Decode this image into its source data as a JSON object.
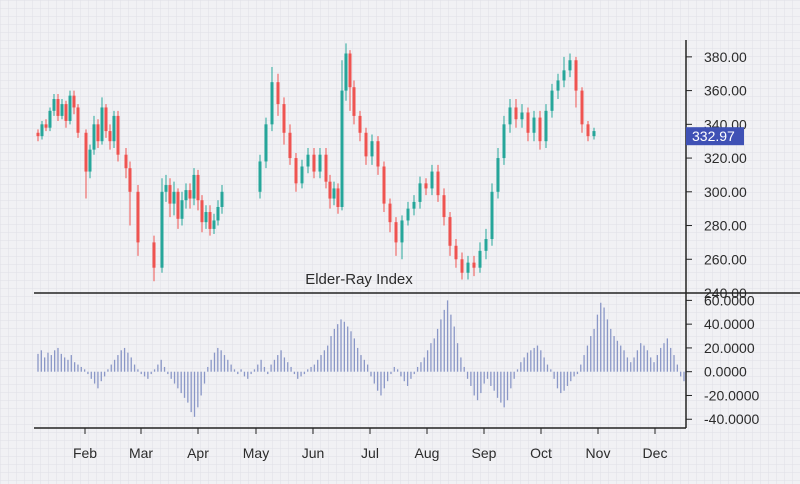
{
  "chart_data": [
    {
      "type": "candlestick",
      "title": "",
      "y_axis": {
        "ticks": [
          380,
          360,
          340,
          320,
          300,
          280,
          260,
          240
        ],
        "tick_labels": [
          "380.00",
          "360.00",
          "340.00",
          "320.00",
          "300.00",
          "280.00",
          "260.00",
          "240.00"
        ],
        "ylim": [
          240,
          390
        ],
        "position": "right"
      },
      "last_price": {
        "label": "332.97",
        "value": 332.97
      },
      "x_axis": {
        "ticks": [
          "Feb",
          "Mar",
          "Apr",
          "May",
          "Jun",
          "Jul",
          "Aug",
          "Sep",
          "Oct",
          "Nov",
          "Dec"
        ]
      },
      "colors": {
        "up": "#26a69a",
        "down": "#ef5350",
        "price_tag": "#3f51b5"
      },
      "candles": [
        [
          335,
          333,
          330,
          337
        ],
        [
          333,
          340,
          331,
          342
        ],
        [
          340,
          338,
          336,
          343
        ],
        [
          338,
          348,
          336,
          350
        ],
        [
          348,
          355,
          345,
          358
        ],
        [
          355,
          345,
          342,
          358
        ],
        [
          345,
          352,
          343,
          355
        ],
        [
          352,
          342,
          338,
          354
        ],
        [
          342,
          357,
          340,
          360
        ],
        [
          357,
          350,
          346,
          360
        ],
        [
          350,
          335,
          332,
          352
        ],
        [
          335,
          312,
          296,
          337
        ],
        [
          312,
          325,
          308,
          328
        ],
        [
          325,
          340,
          322,
          345
        ],
        [
          340,
          330,
          326,
          343
        ],
        [
          330,
          350,
          328,
          356
        ],
        [
          350,
          336,
          332,
          352
        ],
        [
          336,
          330,
          325,
          340
        ],
        [
          330,
          345,
          326,
          348
        ],
        [
          345,
          322,
          318,
          348
        ],
        [
          322,
          314,
          308,
          326
        ],
        [
          314,
          300,
          280,
          318
        ],
        [
          300,
          270,
          262,
          304
        ],
        [
          270,
          255,
          247,
          274
        ],
        [
          255,
          300,
          252,
          308
        ],
        [
          300,
          304,
          294,
          310
        ],
        [
          304,
          293,
          285,
          308
        ],
        [
          293,
          300,
          286,
          306
        ],
        [
          300,
          284,
          278,
          302
        ],
        [
          284,
          295,
          280,
          300
        ],
        [
          295,
          301,
          290,
          305
        ],
        [
          301,
          296,
          290,
          305
        ],
        [
          296,
          310,
          292,
          314
        ],
        [
          310,
          295,
          289,
          313
        ],
        [
          295,
          282,
          276,
          298
        ],
        [
          282,
          288,
          278,
          292
        ],
        [
          288,
          278,
          274,
          292
        ],
        [
          278,
          283,
          275,
          287
        ],
        [
          283,
          291,
          280,
          295
        ],
        [
          291,
          300,
          287,
          304
        ],
        [
          300,
          318,
          296,
          322
        ],
        [
          318,
          340,
          314,
          344
        ],
        [
          340,
          365,
          336,
          374
        ],
        [
          365,
          352,
          345,
          370
        ],
        [
          352,
          335,
          328,
          356
        ],
        [
          335,
          320,
          316,
          340
        ],
        [
          320,
          305,
          300,
          323
        ],
        [
          305,
          315,
          302,
          319
        ],
        [
          315,
          322,
          311,
          326
        ],
        [
          322,
          312,
          308,
          326
        ],
        [
          312,
          322,
          308,
          326
        ],
        [
          322,
          306,
          302,
          326
        ],
        [
          306,
          296,
          290,
          310
        ],
        [
          296,
          302,
          292,
          306
        ],
        [
          302,
          291,
          287,
          305
        ],
        [
          291,
          360,
          289,
          378
        ],
        [
          360,
          382,
          354,
          388
        ],
        [
          382,
          362,
          348,
          384
        ],
        [
          362,
          345,
          340,
          366
        ],
        [
          345,
          335,
          330,
          348
        ],
        [
          335,
          321,
          316,
          338
        ],
        [
          321,
          330,
          316,
          334
        ],
        [
          330,
          315,
          310,
          333
        ],
        [
          315,
          293,
          288,
          318
        ],
        [
          293,
          282,
          276,
          296
        ],
        [
          282,
          270,
          262,
          285
        ],
        [
          270,
          283,
          260,
          286
        ],
        [
          283,
          290,
          280,
          294
        ],
        [
          290,
          294,
          286,
          298
        ],
        [
          294,
          305,
          290,
          309
        ],
        [
          305,
          302,
          298,
          308
        ],
        [
          302,
          312,
          298,
          316
        ],
        [
          312,
          298,
          294,
          316
        ],
        [
          298,
          285,
          280,
          302
        ],
        [
          285,
          268,
          262,
          288
        ],
        [
          268,
          260,
          255,
          272
        ],
        [
          260,
          252,
          248,
          264
        ],
        [
          252,
          258,
          248,
          262
        ],
        [
          258,
          255,
          250,
          262
        ],
        [
          255,
          265,
          252,
          270
        ],
        [
          265,
          272,
          260,
          278
        ],
        [
          272,
          300,
          268,
          305
        ],
        [
          300,
          320,
          296,
          326
        ],
        [
          320,
          340,
          316,
          345
        ],
        [
          340,
          350,
          335,
          355
        ],
        [
          350,
          343,
          338,
          355
        ],
        [
          343,
          347,
          338,
          352
        ],
        [
          347,
          335,
          330,
          350
        ],
        [
          335,
          344,
          330,
          348
        ],
        [
          344,
          330,
          325,
          348
        ],
        [
          330,
          348,
          326,
          352
        ],
        [
          348,
          360,
          344,
          364
        ],
        [
          360,
          366,
          355,
          370
        ],
        [
          366,
          372,
          362,
          380
        ],
        [
          372,
          378,
          368,
          382
        ],
        [
          378,
          360,
          350,
          380
        ],
        [
          360,
          340,
          335,
          362
        ],
        [
          340,
          333,
          330,
          342
        ],
        [
          333,
          336,
          331,
          338
        ]
      ],
      "candle_positions": [
        38,
        42,
        46,
        50,
        54,
        58,
        62,
        66,
        70,
        74,
        78,
        86,
        90,
        94,
        98,
        102,
        106,
        110,
        114,
        118,
        126,
        130,
        138,
        154,
        162,
        166,
        170,
        174,
        178,
        182,
        186,
        190,
        194,
        198,
        202,
        206,
        210,
        214,
        218,
        222,
        260,
        266,
        272,
        278,
        284,
        290,
        296,
        302,
        308,
        314,
        320,
        326,
        330,
        334,
        338,
        342,
        346,
        350,
        354,
        360,
        366,
        372,
        378,
        384,
        390,
        396,
        402,
        408,
        414,
        420,
        426,
        432,
        438,
        444,
        450,
        456,
        462,
        468,
        474,
        480,
        486,
        492,
        498,
        504,
        510,
        516,
        522,
        528,
        534,
        540,
        546,
        552,
        558,
        564,
        570,
        576,
        582,
        588,
        594,
        600
      ]
    },
    {
      "type": "bar",
      "title": "Elder-Ray Index",
      "y_axis": {
        "ticks": [
          60,
          40,
          20,
          0,
          -20,
          -40
        ],
        "tick_labels": [
          "60.0000",
          "40.0000",
          "20.0000",
          "0.0000",
          "-20.0000",
          "-40.0000"
        ],
        "ylim": [
          -44,
          62
        ],
        "position": "right"
      },
      "bar_color": "#8a97c7",
      "values": [
        15,
        18,
        12,
        16,
        14,
        18,
        20,
        15,
        12,
        10,
        14,
        8,
        6,
        4,
        2,
        -2,
        -6,
        -10,
        -14,
        -8,
        -4,
        2,
        6,
        10,
        14,
        18,
        20,
        16,
        12,
        6,
        2,
        -2,
        -4,
        -6,
        -2,
        2,
        6,
        10,
        4,
        -2,
        -6,
        -10,
        -14,
        -18,
        -22,
        -26,
        -34,
        -38,
        -30,
        -20,
        -10,
        4,
        10,
        16,
        20,
        18,
        14,
        10,
        6,
        2,
        -2,
        2,
        -4,
        -6,
        -2,
        2,
        6,
        10,
        4,
        -2,
        6,
        10,
        14,
        18,
        12,
        8,
        4,
        -2,
        -6,
        -4,
        -2,
        2,
        4,
        6,
        10,
        14,
        18,
        22,
        30,
        36,
        40,
        44,
        42,
        38,
        34,
        28,
        20,
        14,
        10,
        6,
        -4,
        -10,
        -16,
        -20,
        -14,
        -8,
        -2,
        4,
        2,
        -4,
        -8,
        -12,
        -6,
        -2,
        4,
        8,
        12,
        18,
        24,
        28,
        36,
        44,
        52,
        60,
        48,
        38,
        24,
        12,
        4,
        -6,
        -12,
        -20,
        -24,
        -18,
        -10,
        -6,
        -12,
        -16,
        -22,
        -26,
        -30,
        -24,
        -14,
        -6,
        2,
        8,
        12,
        16,
        18,
        20,
        22,
        18,
        12,
        6,
        2,
        -6,
        -14,
        -18,
        -16,
        -12,
        -8,
        -4,
        -2,
        6,
        14,
        22,
        30,
        36,
        48,
        58,
        54,
        44,
        36,
        30,
        26,
        22,
        18,
        12,
        8,
        12,
        18,
        24,
        22,
        18,
        12,
        8,
        14,
        20,
        24,
        28,
        20,
        14,
        6,
        -4,
        -8
      ]
    }
  ]
}
